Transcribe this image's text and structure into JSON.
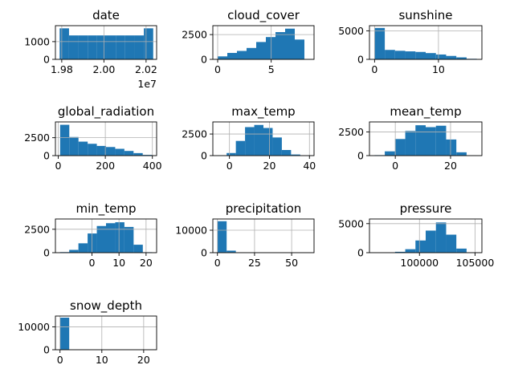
{
  "chart_data": [
    {
      "type": "bar",
      "title": "date",
      "bins": [
        19790101,
        19834474,
        19878847,
        19923220,
        19967593,
        20011966,
        20056339,
        20100712,
        20145085,
        20189458,
        20233831
      ],
      "counts": [
        1750,
        1350,
        1350,
        1350,
        1350,
        1350,
        1350,
        1350,
        1350,
        1750
      ],
      "xlim": [
        19770000,
        20250000
      ],
      "ylim": [
        0,
        1900
      ],
      "xticks": [
        19800000,
        20000000,
        20200000
      ],
      "xtick_labels": [
        "1.98",
        "2.00",
        "2.02"
      ],
      "yticks": [
        0,
        1000
      ],
      "ytick_labels": [
        "0",
        "1000"
      ],
      "offset_label": "1e7"
    },
    {
      "type": "bar",
      "title": "cloud_cover",
      "bins": [
        0,
        0.9,
        1.8,
        2.7,
        3.6,
        4.5,
        5.4,
        6.3,
        7.2,
        8.1,
        9.0
      ],
      "counts": [
        300,
        650,
        850,
        1150,
        1750,
        2250,
        2750,
        3100,
        2000,
        0
      ],
      "xlim": [
        -0.45,
        9.0
      ],
      "ylim": [
        0,
        3400
      ],
      "xticks": [
        0,
        5
      ],
      "xtick_labels": [
        "0",
        "5"
      ],
      "yticks": [
        0,
        2500
      ],
      "ytick_labels": [
        "0",
        "2500"
      ]
    },
    {
      "type": "bar",
      "title": "sunshine",
      "bins": [
        0,
        1.6,
        3.2,
        4.8,
        6.4,
        8.0,
        9.6,
        11.2,
        12.8,
        14.4,
        16.0
      ],
      "counts": [
        5500,
        1650,
        1500,
        1400,
        1300,
        1100,
        850,
        600,
        350,
        100
      ],
      "xlim": [
        -0.8,
        16.8
      ],
      "ylim": [
        0,
        5900
      ],
      "xticks": [
        0,
        10
      ],
      "xtick_labels": [
        "0",
        "10"
      ],
      "yticks": [
        0,
        5000
      ],
      "ytick_labels": [
        "0",
        "5000"
      ]
    },
    {
      "type": "bar",
      "title": "global_radiation",
      "bins": [
        8,
        47,
        86,
        125,
        164,
        203,
        242,
        281,
        320,
        359,
        398
      ],
      "counts": [
        4300,
        2600,
        1950,
        1650,
        1350,
        1200,
        950,
        650,
        350,
        100
      ],
      "xlim": [
        -12,
        418
      ],
      "ylim": [
        0,
        4700
      ],
      "xticks": [
        0,
        200,
        400
      ],
      "xtick_labels": [
        "0",
        "200",
        "400"
      ],
      "yticks": [
        0,
        2500
      ],
      "ytick_labels": [
        "0",
        "2500"
      ]
    },
    {
      "type": "bar",
      "title": "max_temp",
      "bins": [
        -6,
        -1.4,
        3.2,
        7.8,
        12.4,
        17.0,
        21.6,
        26.2,
        30.8,
        35.4,
        40.0
      ],
      "counts": [
        40,
        300,
        1700,
        3300,
        3550,
        3200,
        2100,
        650,
        130,
        15
      ],
      "xlim": [
        -8.3,
        42.3
      ],
      "ylim": [
        0,
        3900
      ],
      "xticks": [
        0,
        20,
        40
      ],
      "xtick_labels": [
        "0",
        "20",
        "40"
      ],
      "yticks": [
        0,
        2500
      ],
      "ytick_labels": [
        "0",
        "2500"
      ]
    },
    {
      "type": "bar",
      "title": "mean_temp",
      "bins": [
        -7.5,
        -3.8,
        -0.1,
        3.6,
        7.3,
        11.0,
        14.7,
        18.4,
        22.1,
        25.8,
        29.5
      ],
      "counts": [
        50,
        450,
        1750,
        2600,
        3200,
        3000,
        3150,
        1700,
        350,
        30
      ],
      "xlim": [
        -9.35,
        31.35
      ],
      "ylim": [
        0,
        3550
      ],
      "xticks": [
        0,
        20
      ],
      "xtick_labels": [
        "0",
        "20"
      ],
      "yticks": [
        0,
        2500
      ],
      "ytick_labels": [
        "0",
        "2500"
      ]
    },
    {
      "type": "bar",
      "title": "min_temp",
      "bins": [
        -11.8,
        -8.4,
        -5.0,
        -1.6,
        1.8,
        5.2,
        8.6,
        12.0,
        15.4,
        18.8,
        22.2
      ],
      "counts": [
        60,
        300,
        1000,
        2050,
        2850,
        3150,
        3250,
        2750,
        850,
        50
      ],
      "xlim": [
        -13.5,
        23.9
      ],
      "ylim": [
        0,
        3600
      ],
      "xticks": [
        0,
        10,
        20
      ],
      "xtick_labels": [
        "0",
        "10",
        "20"
      ],
      "yticks": [
        0,
        2500
      ],
      "ytick_labels": [
        "0",
        "2500"
      ]
    },
    {
      "type": "bar",
      "title": "precipitation",
      "bins": [
        0,
        6.2,
        12.4,
        18.6,
        24.8,
        31.0,
        37.2,
        43.4,
        49.6,
        55.8,
        62.0
      ],
      "counts": [
        14000,
        900,
        120,
        30,
        10,
        5,
        0,
        0,
        0,
        2
      ],
      "xlim": [
        -3.1,
        65.1
      ],
      "ylim": [
        0,
        15000
      ],
      "xticks": [
        0,
        25,
        50
      ],
      "xtick_labels": [
        "0",
        "25",
        "50"
      ],
      "yticks": [
        0,
        10000
      ],
      "ytick_labels": [
        "0",
        "10000"
      ]
    },
    {
      "type": "bar",
      "title": "pressure",
      "bins": [
        95960,
        96880,
        97800,
        98720,
        99640,
        100560,
        101480,
        102400,
        103320,
        104240,
        105160
      ],
      "counts": [
        5,
        20,
        150,
        600,
        2100,
        3800,
        5200,
        3100,
        700,
        40
      ],
      "xlim": [
        95500,
        105620
      ],
      "ylim": [
        0,
        5800
      ],
      "xticks": [
        100000,
        105000
      ],
      "xtick_labels": [
        "100000",
        "105000"
      ],
      "yticks": [
        0,
        5000
      ],
      "ytick_labels": [
        "0",
        "5000"
      ]
    },
    {
      "type": "bar",
      "title": "snow_depth",
      "bins": [
        0,
        2.2,
        4.4,
        6.6,
        8.8,
        11.0,
        13.2,
        15.4,
        17.6,
        19.8,
        22.0
      ],
      "counts": [
        14000,
        40,
        10,
        5,
        2,
        0,
        0,
        0,
        0,
        1
      ],
      "xlim": [
        -1.1,
        23.1
      ],
      "ylim": [
        0,
        14700
      ],
      "xticks": [
        0,
        10,
        20
      ],
      "xtick_labels": [
        "0",
        "10",
        "20"
      ],
      "yticks": [
        0,
        10000
      ],
      "ytick_labels": [
        "0",
        "10000"
      ]
    }
  ],
  "colors": {
    "bar": "#1f77b4",
    "grid": "#b0b0b0",
    "axis": "#000000"
  }
}
